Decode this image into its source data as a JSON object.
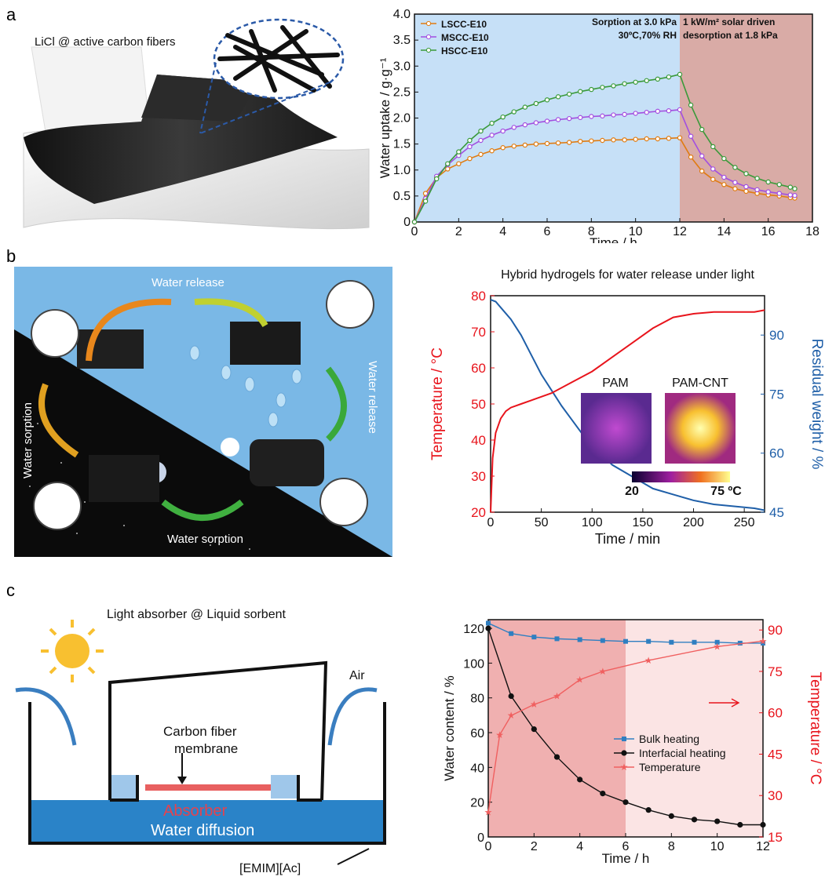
{
  "panel_labels": [
    "a",
    "b",
    "c"
  ],
  "panel_a": {
    "illustration_label": "LiCl @ active carbon fibers"
  },
  "panel_b": {
    "illustration_labels": {
      "water_release_top": "Water release",
      "water_release_right": "Water release",
      "water_sorption_left": "Water sorption",
      "water_sorption_bottom": "Water sorption"
    }
  },
  "panel_c": {
    "illustration_labels": {
      "title": "Light absorber @ Liquid sorbent",
      "air": "Air",
      "membrane_line1": "Carbon fiber",
      "membrane_line2": "membrane",
      "absorber": "Absorber",
      "diffusion": "Water diffusion",
      "liquid": "[EMIM][Ac]"
    }
  },
  "colors": {
    "sorption_bg": "#c6e0f7",
    "desorption_bg": "#d9aba6",
    "lscc": "#e07b10",
    "mscc": "#a24fe0",
    "hscc": "#3a9a3a",
    "temperature": "#e8141c",
    "residual": "#1f5fa8",
    "bulk": "#2f7fc1",
    "interfacial": "#111111",
    "tempc": "#f06060"
  },
  "chart_data": [
    {
      "id": "a",
      "type": "line",
      "title": "",
      "xlabel": "Time / h",
      "ylabel": "Water uptake / g·g⁻¹",
      "xlim": [
        0,
        18
      ],
      "ylim": [
        0,
        4.0
      ],
      "xticks": [
        "0",
        "2",
        "4",
        "6",
        "8",
        "10",
        "12",
        "14",
        "16",
        "18"
      ],
      "yticks": [
        "0",
        "0.5",
        "1.0",
        "1.5",
        "2.0",
        "2.5",
        "3.0",
        "3.5",
        "4.0"
      ],
      "regions": [
        {
          "from": 0,
          "to": 12,
          "label": "Sorption at 3.0 kPa\n30ºC,70% RH"
        },
        {
          "from": 12,
          "to": 18,
          "label": "1 kW/m² solar driven\ndesorption at 1.8 kPa"
        }
      ],
      "legend_position": "top-left",
      "x": [
        0,
        0.5,
        1,
        1.5,
        2,
        2.5,
        3,
        3.5,
        4,
        4.5,
        5,
        5.5,
        6,
        6.5,
        7,
        7.5,
        8,
        8.5,
        9,
        9.5,
        10,
        10.5,
        11,
        11.5,
        12,
        12.5,
        13,
        13.5,
        14,
        14.5,
        15,
        15.5,
        16,
        16.5,
        17,
        17.2
      ],
      "series": [
        {
          "name": "LSCC-E10",
          "values": [
            0,
            0.55,
            0.85,
            1.02,
            1.12,
            1.22,
            1.3,
            1.37,
            1.43,
            1.46,
            1.48,
            1.5,
            1.51,
            1.52,
            1.53,
            1.55,
            1.56,
            1.57,
            1.58,
            1.58,
            1.59,
            1.6,
            1.6,
            1.61,
            1.62,
            1.25,
            0.98,
            0.82,
            0.72,
            0.64,
            0.59,
            0.55,
            0.52,
            0.5,
            0.47,
            0.46
          ]
        },
        {
          "name": "MSCC-E10",
          "values": [
            0,
            0.45,
            0.88,
            1.1,
            1.28,
            1.45,
            1.57,
            1.67,
            1.75,
            1.82,
            1.87,
            1.91,
            1.94,
            1.97,
            1.99,
            2.01,
            2.03,
            2.04,
            2.06,
            2.07,
            2.09,
            2.11,
            2.13,
            2.14,
            2.16,
            1.65,
            1.27,
            1.02,
            0.86,
            0.76,
            0.68,
            0.62,
            0.58,
            0.55,
            0.52,
            0.51
          ]
        },
        {
          "name": "HSCC-E10",
          "values": [
            0,
            0.4,
            0.83,
            1.12,
            1.35,
            1.57,
            1.75,
            1.9,
            2.02,
            2.12,
            2.21,
            2.28,
            2.35,
            2.41,
            2.46,
            2.51,
            2.55,
            2.59,
            2.62,
            2.66,
            2.69,
            2.72,
            2.75,
            2.79,
            2.84,
            2.25,
            1.78,
            1.45,
            1.22,
            1.05,
            0.93,
            0.84,
            0.77,
            0.72,
            0.67,
            0.64
          ]
        }
      ]
    },
    {
      "id": "b",
      "type": "line",
      "title": "Hybrid hydrogels for water release under light",
      "xlabel": "Time / min",
      "ylabel": "Temperature / °C",
      "y2label": "Residual weight / %",
      "xlim": [
        0,
        270
      ],
      "ylim": [
        20,
        80
      ],
      "y2lim": [
        45,
        100
      ],
      "xticks": [
        "0",
        "50",
        "100",
        "150",
        "200",
        "250"
      ],
      "yticks": [
        "20",
        "30",
        "40",
        "50",
        "60",
        "70",
        "80"
      ],
      "y2ticks": [
        "45",
        "60",
        "75",
        "90"
      ],
      "inset": {
        "labels": [
          "PAM",
          "PAM-CNT"
        ],
        "scale_min": "20",
        "scale_max": "75 ºC"
      },
      "series": [
        {
          "name": "Temperature",
          "axis": "left",
          "x": [
            0,
            2,
            5,
            10,
            15,
            20,
            30,
            40,
            50,
            60,
            80,
            100,
            120,
            140,
            160,
            180,
            200,
            220,
            240,
            260,
            270
          ],
          "values": [
            20,
            35,
            42,
            46,
            48,
            49,
            50,
            51,
            52,
            53,
            56,
            59,
            63,
            67,
            71,
            74,
            75,
            75.5,
            75.5,
            75.5,
            76
          ]
        },
        {
          "name": "Residual weight",
          "axis": "right",
          "x": [
            0,
            5,
            10,
            20,
            30,
            40,
            50,
            60,
            70,
            80,
            90,
            100,
            120,
            140,
            160,
            180,
            200,
            220,
            240,
            260,
            270
          ],
          "values": [
            99,
            98.5,
            97,
            94,
            90,
            85,
            80,
            76,
            72,
            68.5,
            65,
            62,
            57,
            54,
            51,
            49.5,
            48,
            47,
            46.5,
            46,
            45.5
          ]
        }
      ]
    },
    {
      "id": "c",
      "type": "line",
      "title": "",
      "xlabel": "Time / h",
      "ylabel": "Water content / %",
      "y2label": "Temperature / °C",
      "xlim": [
        0,
        12
      ],
      "ylim": [
        0,
        125
      ],
      "y2lim": [
        15,
        93.75
      ],
      "xticks": [
        "0",
        "2",
        "4",
        "6",
        "8",
        "10",
        "12"
      ],
      "yticks": [
        "0",
        "20",
        "40",
        "60",
        "80",
        "100",
        "120"
      ],
      "y2ticks": [
        "15",
        "30",
        "45",
        "60",
        "75",
        "90"
      ],
      "regions": [
        {
          "from": 0,
          "to": 6
        },
        {
          "from": 6,
          "to": 12
        }
      ],
      "legend_position": "center-right",
      "series": [
        {
          "name": "Bulk heating",
          "axis": "left",
          "x": [
            0,
            1,
            2,
            3,
            4,
            5,
            6,
            7,
            8,
            9,
            10,
            11,
            12
          ],
          "values": [
            123,
            117,
            115,
            114,
            113.5,
            113,
            112.5,
            112.5,
            112,
            112,
            112,
            111.5,
            111.5
          ]
        },
        {
          "name": "Interfacial heating",
          "axis": "left",
          "x": [
            0,
            1,
            2,
            3,
            4,
            5,
            6,
            7,
            8,
            9,
            10,
            11,
            12
          ],
          "values": [
            120,
            81,
            62,
            46,
            33,
            25,
            20,
            15.5,
            12,
            10,
            9,
            7,
            7
          ]
        },
        {
          "name": "Temperature",
          "axis": "right",
          "x": [
            0,
            0.5,
            1,
            2,
            3,
            4,
            5,
            7,
            10,
            12
          ],
          "values": [
            24,
            52,
            59,
            63,
            66,
            72,
            75,
            79,
            84,
            86
          ]
        }
      ]
    }
  ]
}
